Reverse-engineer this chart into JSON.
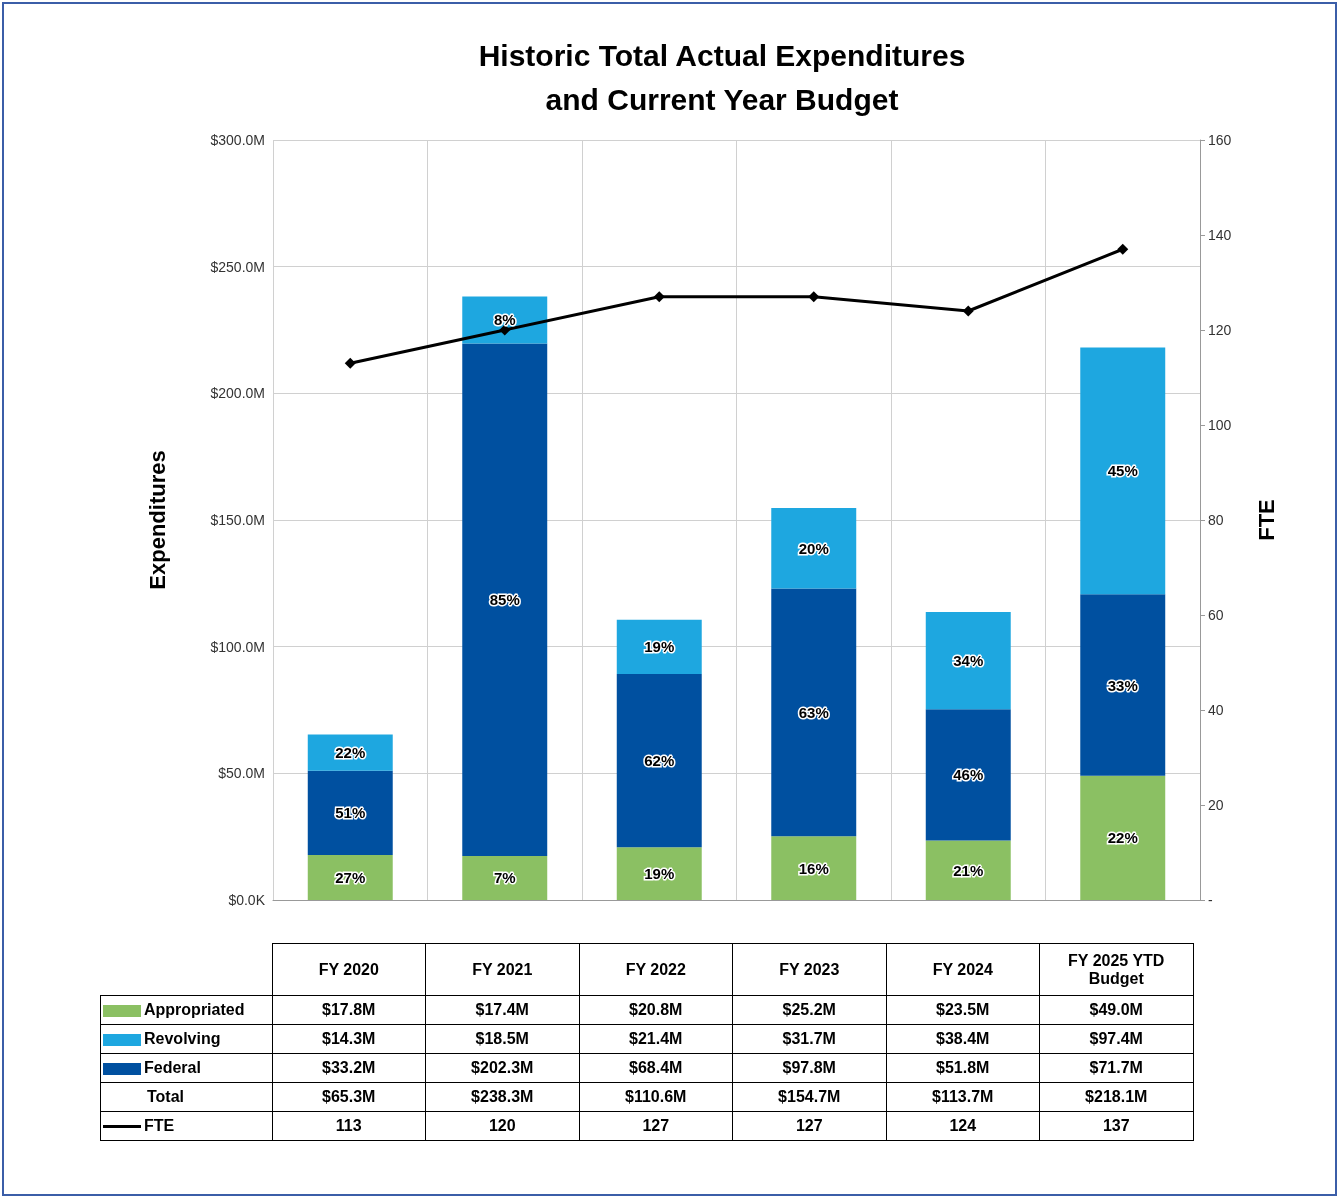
{
  "chart_data": {
    "type": "bar",
    "title": "Historic Total Actual Expenditures\nand Current Year Budget",
    "ylabel": "Expenditures",
    "y2label": "FTE",
    "categories": [
      "FY 2020",
      "FY 2021",
      "FY 2022",
      "FY 2023",
      "FY 2024",
      "FY 2025 YTD Budget"
    ],
    "stacked": true,
    "series": [
      {
        "name": "Appropriated",
        "color": "#8bc063",
        "values": [
          17.8,
          17.4,
          20.8,
          25.2,
          23.5,
          49.0
        ],
        "value_labels": [
          "$17.8M",
          "$17.4M",
          "$20.8M",
          "$25.2M",
          "$23.5M",
          "$49.0M"
        ]
      },
      {
        "name": "Federal",
        "color": "#0050a0",
        "values": [
          33.2,
          202.3,
          68.4,
          97.8,
          51.8,
          71.7
        ],
        "value_labels": [
          "$33.2M",
          "$202.3M",
          "$68.4M",
          "$97.8M",
          "$51.8M",
          "$71.7M"
        ]
      },
      {
        "name": "Revolving",
        "color": "#1ea7e0",
        "values": [
          14.3,
          18.5,
          21.4,
          31.7,
          38.4,
          97.4
        ],
        "value_labels": [
          "$14.3M",
          "$18.5M",
          "$21.4M",
          "$31.7M",
          "$38.4M",
          "$97.4M"
        ]
      },
      {
        "name": "FTE",
        "type": "line",
        "axis": "y2",
        "color": "#000000",
        "marker": "diamond",
        "values": [
          113,
          120,
          127,
          127,
          124,
          137
        ],
        "value_labels": [
          "113",
          "120",
          "127",
          "127",
          "124",
          "137"
        ]
      }
    ],
    "ylim": [
      0,
      300
    ],
    "yticks": [
      {
        "value": 0,
        "label": "$0.0K"
      },
      {
        "value": 50,
        "label": "$50.0M"
      },
      {
        "value": 100,
        "label": "$100.0M"
      },
      {
        "value": 150,
        "label": "$150.0M"
      },
      {
        "value": 200,
        "label": "$200.0M"
      },
      {
        "value": 250,
        "label": "$250.0M"
      },
      {
        "value": 300,
        "label": "$300.0M"
      }
    ],
    "y2lim": [
      0,
      160
    ],
    "y2ticks": [
      {
        "value": 0,
        "label": "-"
      },
      20,
      40,
      60,
      80,
      100,
      120,
      140,
      160
    ],
    "grid": true,
    "legend": "bottom left",
    "annotations": [
      "27%",
      "51%",
      "22%",
      "7%",
      "85%",
      "8%",
      "19%",
      "62%",
      "19%",
      "16%",
      "63%",
      "20%",
      "21%",
      "46%",
      "34%",
      "22%",
      "33%",
      "45%",
      "Total",
      "$65.3M",
      "$238.3M",
      "$110.6M",
      "$154.7M",
      "$113.7M",
      "$218.1M"
    ]
  }
}
